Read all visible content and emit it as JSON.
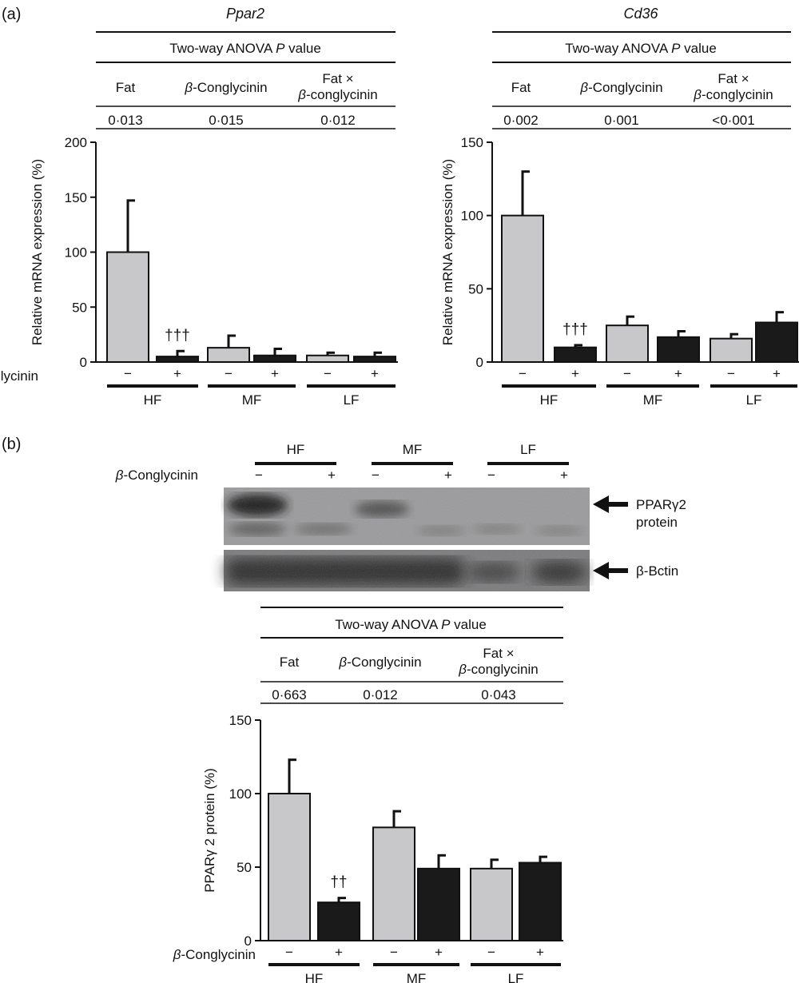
{
  "panel_a": {
    "label": "(a)"
  },
  "panel_b": {
    "label": "(b)"
  },
  "anova": {
    "header": "Two-way ANOVA P value",
    "header_pre": "Two-way ANOVA ",
    "header_p": "P",
    "header_post": " value",
    "col_fat": "Fat",
    "col_beta_symbol": "β",
    "col_beta_rest": "-Conglycinin",
    "col_inter_line1": "Fat ×",
    "col_inter_line2_symbol": "β",
    "col_inter_line2_rest": "-conglycinin"
  },
  "axis": {
    "ylabel_mrna": "Relative mRNA expression (%)",
    "ylabel_protein": "PPARγ 2 protein (%)",
    "treatment_symbol": "β",
    "treatment_rest": "-Conglycinin",
    "minus": "−",
    "plus": "+"
  },
  "colors": {
    "minus_bar": "#c8c8ca",
    "plus_bar": "#1a1a1a",
    "blot_bg": "#8a8a8a"
  },
  "western_blot": {
    "groups": [
      "HF",
      "MF",
      "LF"
    ],
    "band1_label_line1": "PPARγ2",
    "band1_label_line2": "protein",
    "band2_label": "β-Bctin"
  },
  "chart_data": [
    {
      "type": "bar",
      "title": "Ppar2",
      "ylabel": "Relative mRNA expression (%)",
      "ylim": [
        0,
        200
      ],
      "yticks": [
        0,
        50,
        100,
        150,
        200
      ],
      "groups": [
        "HF",
        "MF",
        "LF"
      ],
      "treatment": [
        "−",
        "+"
      ],
      "series": [
        {
          "name": "−",
          "values": [
            100,
            13,
            6
          ],
          "errors": [
            47,
            11,
            2.5
          ]
        },
        {
          "name": "+",
          "values": [
            5,
            6,
            5
          ],
          "errors": [
            5,
            6,
            3.5
          ]
        }
      ],
      "annotations": [
        {
          "group": "HF",
          "series": "+",
          "text": "†††"
        }
      ],
      "anova": {
        "fat": "0·013",
        "conglycinin": "0·015",
        "interaction": "0·012"
      }
    },
    {
      "type": "bar",
      "title": "Cd36",
      "ylabel": "Relative mRNA expression (%)",
      "ylim": [
        0,
        150
      ],
      "yticks": [
        0,
        50,
        100,
        150
      ],
      "groups": [
        "HF",
        "MF",
        "LF"
      ],
      "treatment": [
        "−",
        "+"
      ],
      "series": [
        {
          "name": "−",
          "values": [
            100,
            25,
            16
          ],
          "errors": [
            30,
            6,
            3
          ]
        },
        {
          "name": "+",
          "values": [
            10,
            17,
            27
          ],
          "errors": [
            1.5,
            4,
            7
          ]
        }
      ],
      "annotations": [
        {
          "group": "HF",
          "series": "+",
          "text": "†††"
        }
      ],
      "anova": {
        "fat": "0·002",
        "conglycinin": "0·001",
        "interaction": "<0·001"
      }
    },
    {
      "type": "bar",
      "title": "",
      "ylabel": "PPARγ 2 protein (%)",
      "ylim": [
        0,
        150
      ],
      "yticks": [
        0,
        50,
        100,
        150
      ],
      "groups": [
        "HF",
        "MF",
        "LF"
      ],
      "treatment": [
        "−",
        "+"
      ],
      "series": [
        {
          "name": "−",
          "values": [
            100,
            77,
            49
          ],
          "errors": [
            23,
            11,
            6
          ]
        },
        {
          "name": "+",
          "values": [
            26,
            49,
            53
          ],
          "errors": [
            3,
            9,
            4
          ]
        }
      ],
      "annotations": [
        {
          "group": "HF",
          "series": "+",
          "text": "††"
        }
      ],
      "anova": {
        "fat": "0·663",
        "conglycinin": "0·012",
        "interaction": "0·043"
      }
    }
  ]
}
